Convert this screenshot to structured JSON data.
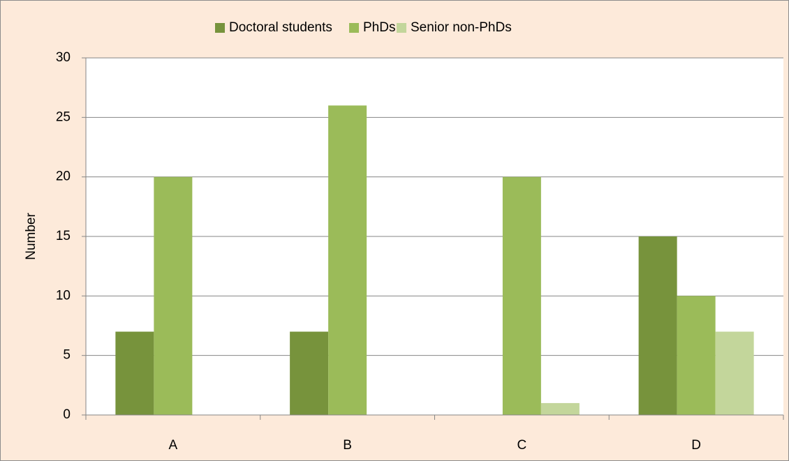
{
  "chart_data": {
    "type": "bar",
    "categories": [
      "A",
      "B",
      "C",
      "D"
    ],
    "series": [
      {
        "name": "Doctoral students",
        "color": "#77933c",
        "values": [
          7,
          7,
          0,
          15
        ]
      },
      {
        "name": "PhDs",
        "color": "#9bbb59",
        "values": [
          20,
          26,
          20,
          10
        ]
      },
      {
        "name": "Senior non-PhDs",
        "color": "#c3d69b",
        "values": [
          0,
          0,
          1,
          7
        ]
      }
    ],
    "y_label": "Number",
    "ylim": [
      0,
      30
    ],
    "yticks": [
      0,
      5,
      10,
      15,
      20,
      25,
      30
    ],
    "grid": true,
    "legend": "top"
  }
}
